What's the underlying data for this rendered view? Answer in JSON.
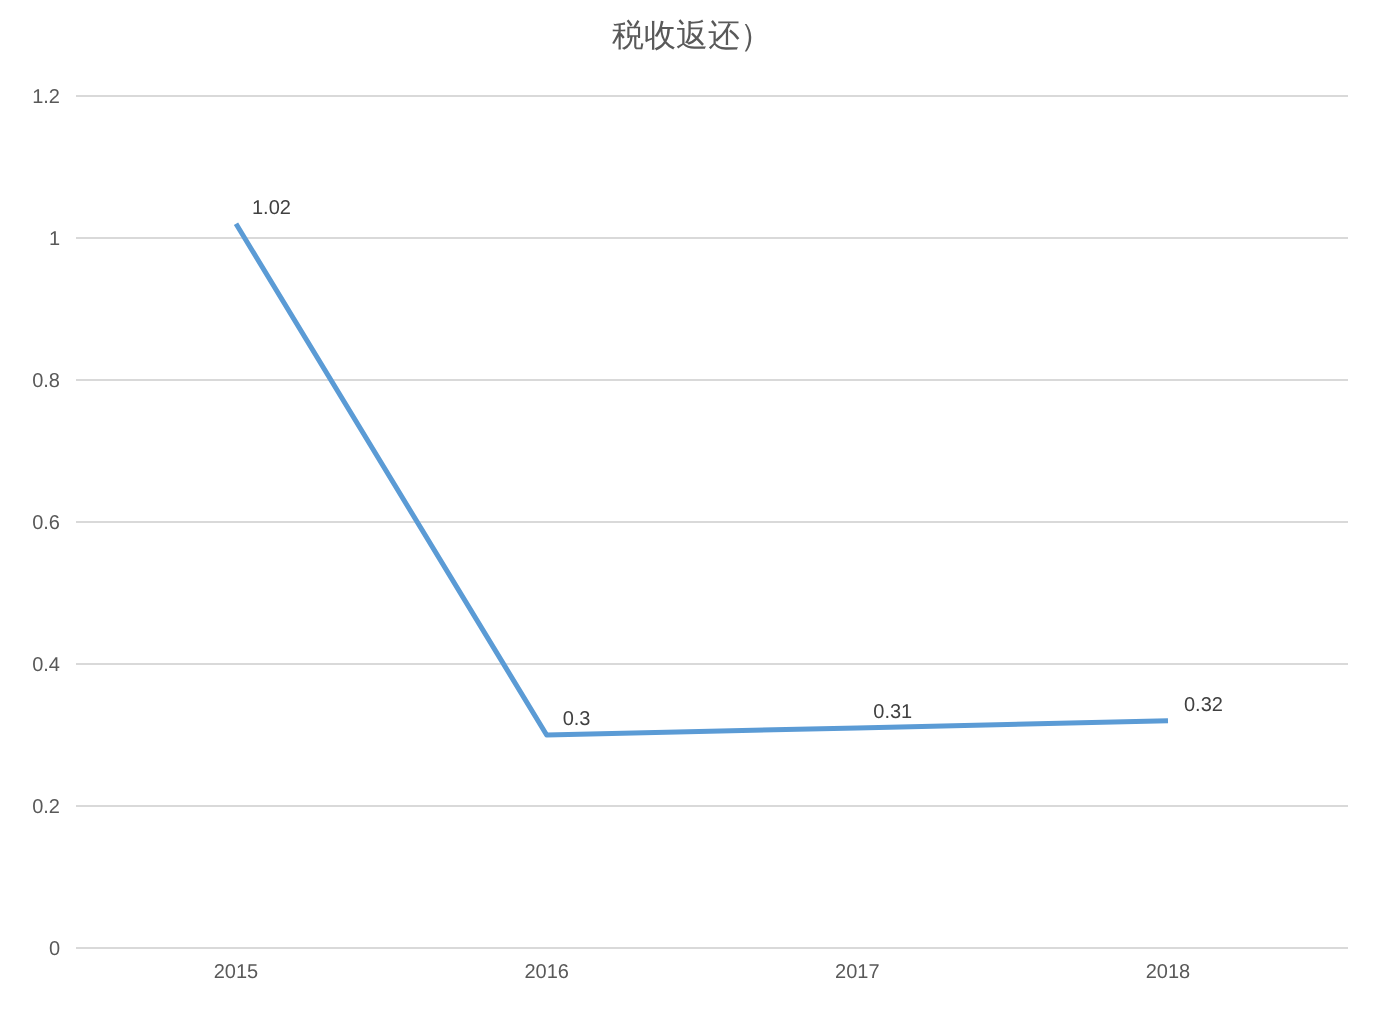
{
  "chart_data": {
    "type": "line",
    "title": "税收返还）",
    "categories": [
      "2015",
      "2016",
      "2017",
      "2018"
    ],
    "series": [
      {
        "color": "#5b9bd5",
        "values": [
          1.02,
          0.3,
          0.31,
          0.32
        ]
      }
    ],
    "ylim": [
      0,
      1.2
    ],
    "yticks": [
      0,
      0.2,
      0.4,
      0.6,
      0.8,
      1,
      1.2
    ],
    "grid": "y",
    "data_labels": true,
    "marker": "none",
    "line_style": "solid",
    "legend": false
  }
}
